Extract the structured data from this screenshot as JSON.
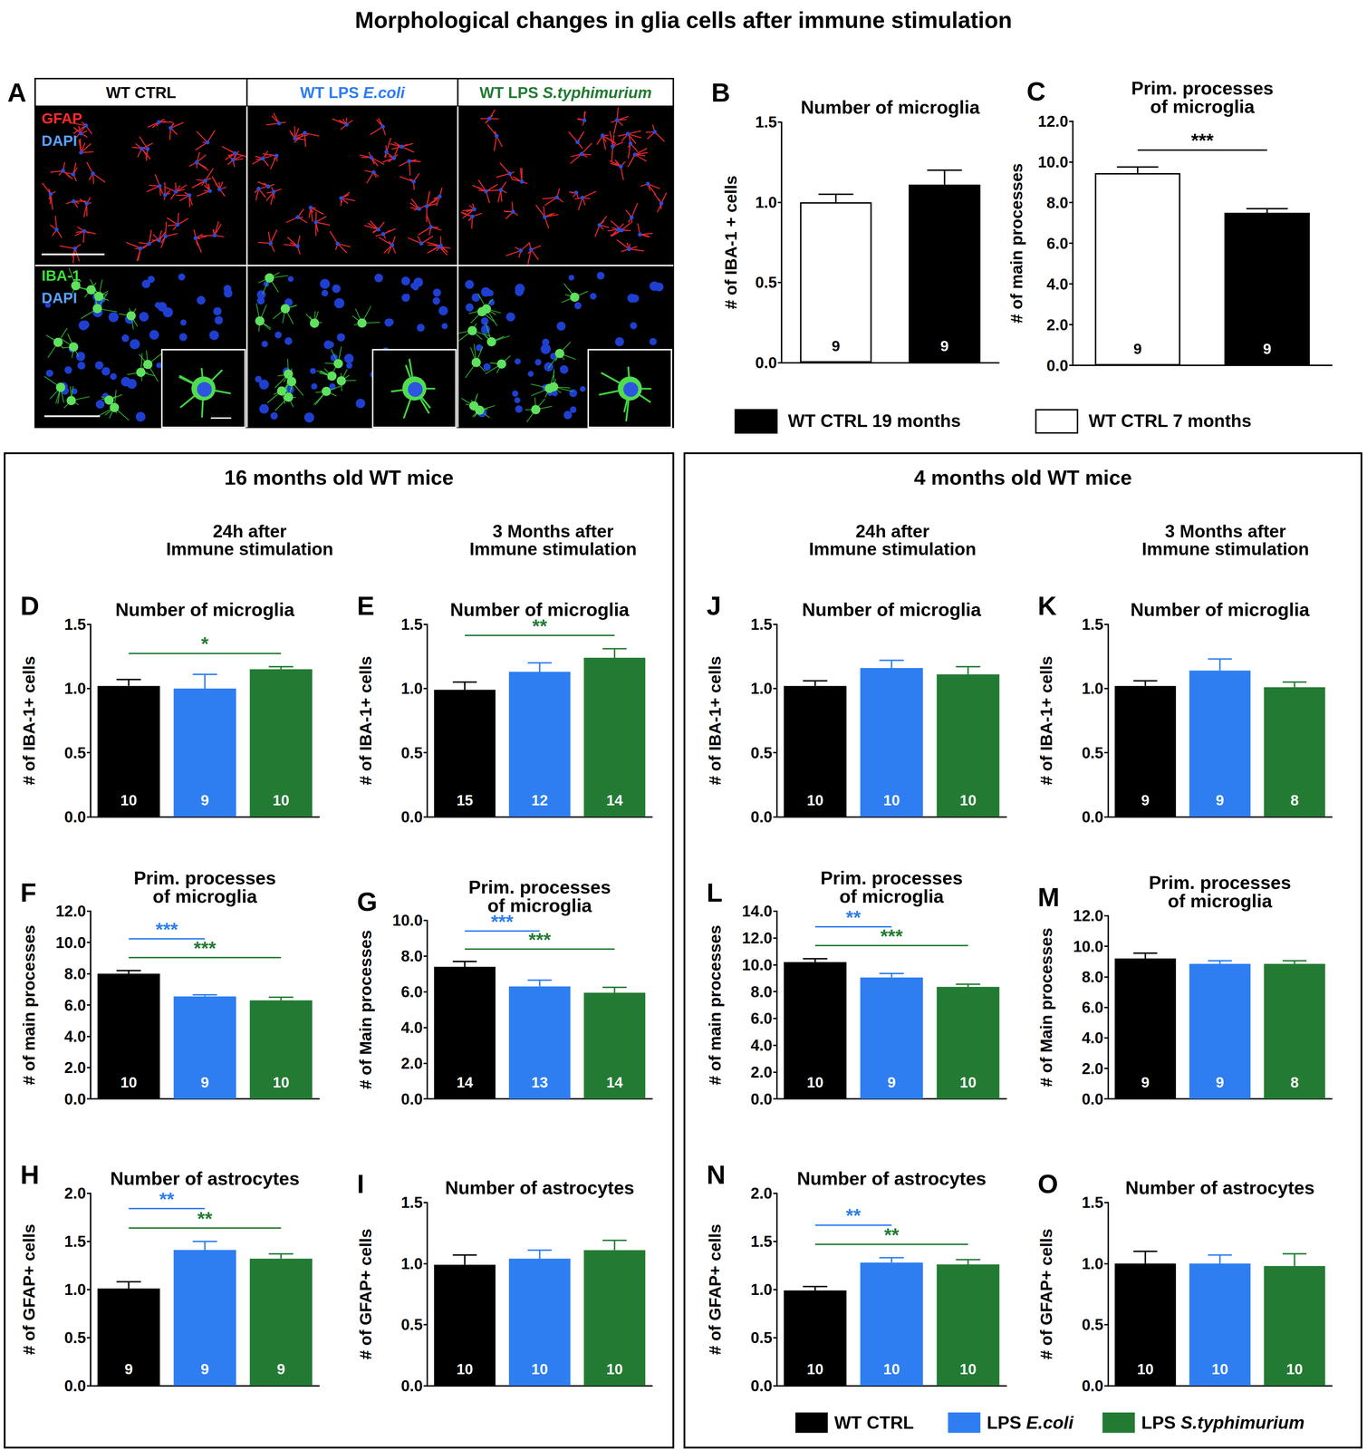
{
  "title": "Morphological changes in glia cells after immune stimulation",
  "panel_a": {
    "panel": "A",
    "columns": [
      {
        "text": "WT CTRL",
        "color": "#000000"
      },
      {
        "text": "WT LPS E.coli",
        "color": "#2e7ef2"
      },
      {
        "text": "WT LPS S.typhimurium",
        "color": "#237b33"
      }
    ],
    "rows": [
      [
        {
          "text": "GFAP",
          "color": "#ff2a2a"
        },
        {
          "text": "DAPI",
          "color": "#5aa0ff"
        }
      ],
      [
        {
          "text": "IBA-1",
          "color": "#3ddc3d"
        },
        {
          "text": "DAPI",
          "color": "#5aa0ff"
        }
      ]
    ]
  },
  "legend_top": [
    {
      "name": "WT CTRL 19 months",
      "color": "#000000"
    },
    {
      "name": "WT CTRL 7 months",
      "color": "#ffffff"
    }
  ],
  "legend_bottom": [
    {
      "name": "WT CTRL",
      "color": "#000000"
    },
    {
      "name": "LPS E.coli",
      "color": "#2e7ef2"
    },
    {
      "name": "LPS S.typhimurium",
      "color": "#237b33"
    }
  ],
  "sections": [
    {
      "title": "16 months old WT mice",
      "columns": [
        "24h after\nImmune stimulation",
        "3 Months after\nImmune stimulation"
      ]
    },
    {
      "title": "4 months old WT mice",
      "columns": [
        "24h after\nImmune stimulation",
        "3 Months after\nImmune stimulation"
      ]
    }
  ],
  "chart_data": [
    {
      "type": "bar",
      "panel": "B",
      "title": "Number of microglia",
      "ylabel": "# of IBA-1 + cells",
      "categories": [
        "WT CTRL 7 months",
        "WT CTRL 19 months"
      ],
      "colors": [
        "#ffffff",
        "#000000"
      ],
      "values": [
        1.0,
        1.11
      ],
      "errors": [
        0.05,
        0.09
      ],
      "n": [
        9,
        9
      ],
      "ylim": [
        0,
        1.5
      ],
      "yticks": [
        {
          "value": 0,
          "label": "0.0"
        },
        {
          "value": 0.5,
          "label": "0.5"
        },
        {
          "value": 1,
          "label": "1.0"
        },
        {
          "value": 1.5,
          "label": "1.5"
        }
      ],
      "grid": false,
      "tick_labels": "y",
      "annotations": []
    },
    {
      "type": "bar",
      "panel": "C",
      "title": "Prim. processes\nof microglia",
      "ylabel": "# of main processes",
      "categories": [
        "WT CTRL 7 months",
        "WT CTRL 19 months"
      ],
      "colors": [
        "#ffffff",
        "#000000"
      ],
      "values": [
        9.45,
        7.5
      ],
      "errors": [
        0.3,
        0.2
      ],
      "n": [
        9,
        9
      ],
      "ylim": [
        0,
        12
      ],
      "yticks": [
        {
          "value": 0,
          "label": "0.0"
        },
        {
          "value": 2,
          "label": "2.0"
        },
        {
          "value": 4,
          "label": "4.0"
        },
        {
          "value": 6,
          "label": "6.0"
        },
        {
          "value": 8,
          "label": "8.0"
        },
        {
          "value": 10,
          "label": "10.0"
        },
        {
          "value": 12,
          "label": "12.0"
        }
      ],
      "grid": false,
      "tick_labels": "y",
      "annotations": [
        {
          "from": "WT CTRL 7 months",
          "to": "WT CTRL 19 months",
          "label": "***",
          "color": "#000000"
        }
      ]
    },
    {
      "type": "bar",
      "panel": "D",
      "title": "Number of microglia",
      "ylabel": "# of IBA-1+ cells",
      "categories": [
        "WT CTRL",
        "LPS E.coli",
        "LPS S.typhimurium"
      ],
      "colors": [
        "#000000",
        "#2e7ef2",
        "#237b33"
      ],
      "values": [
        1.02,
        1.0,
        1.15
      ],
      "errors": [
        0.05,
        0.11,
        0.02
      ],
      "n": [
        10,
        9,
        10
      ],
      "ylim": [
        0,
        1.5
      ],
      "yticks": [
        {
          "value": 0,
          "label": "0.0"
        },
        {
          "value": 0.5,
          "label": "0.5"
        },
        {
          "value": 1,
          "label": "1.0"
        },
        {
          "value": 1.5,
          "label": "1.5"
        }
      ],
      "grid": false,
      "tick_labels": "y",
      "annotations": [
        {
          "from": "WT CTRL",
          "to": "LPS S.typhimurium",
          "label": "*",
          "color": "#237b33"
        }
      ]
    },
    {
      "type": "bar",
      "panel": "E",
      "title": "Number of microglia",
      "ylabel": "# of IBA-1+ cells",
      "categories": [
        "WT CTRL",
        "LPS E.coli",
        "LPS S.typhimurium"
      ],
      "colors": [
        "#000000",
        "#2e7ef2",
        "#237b33"
      ],
      "values": [
        0.99,
        1.13,
        1.24
      ],
      "errors": [
        0.06,
        0.07,
        0.07
      ],
      "n": [
        15,
        12,
        14
      ],
      "ylim": [
        0,
        1.5
      ],
      "yticks": [
        {
          "value": 0,
          "label": "0.0"
        },
        {
          "value": 0.5,
          "label": "0.5"
        },
        {
          "value": 1,
          "label": "1.0"
        },
        {
          "value": 1.5,
          "label": "1.5"
        }
      ],
      "grid": false,
      "tick_labels": "y",
      "annotations": [
        {
          "from": "WT CTRL",
          "to": "LPS S.typhimurium",
          "label": "**",
          "color": "#237b33"
        }
      ]
    },
    {
      "type": "bar",
      "panel": "F",
      "title": "Prim. processes\nof microglia",
      "ylabel": "# of main processes",
      "categories": [
        "WT CTRL",
        "LPS E.coli",
        "LPS S.typhimurium"
      ],
      "colors": [
        "#000000",
        "#2e7ef2",
        "#237b33"
      ],
      "values": [
        8.0,
        6.55,
        6.3
      ],
      "errors": [
        0.2,
        0.1,
        0.2
      ],
      "n": [
        10,
        9,
        10
      ],
      "ylim": [
        0,
        12
      ],
      "yticks": [
        {
          "value": 0,
          "label": "0.0"
        },
        {
          "value": 2,
          "label": "2.0"
        },
        {
          "value": 4,
          "label": "4.0"
        },
        {
          "value": 6,
          "label": "6.0"
        },
        {
          "value": 8,
          "label": "8.0"
        },
        {
          "value": 10,
          "label": "10.0"
        },
        {
          "value": 12,
          "label": "12.0"
        }
      ],
      "grid": false,
      "tick_labels": "y",
      "annotations": [
        {
          "from": "WT CTRL",
          "to": "LPS E.coli",
          "label": "***",
          "color": "#2e7ef2"
        },
        {
          "from": "WT CTRL",
          "to": "LPS S.typhimurium",
          "label": "***",
          "color": "#237b33"
        }
      ]
    },
    {
      "type": "bar",
      "panel": "G",
      "title": "Prim. processes\nof microglia",
      "ylabel": "# of Main processes",
      "categories": [
        "WT CTRL",
        "LPS E.coli",
        "LPS S.typhimurium"
      ],
      "colors": [
        "#000000",
        "#2e7ef2",
        "#237b33"
      ],
      "values": [
        7.4,
        6.3,
        5.95
      ],
      "errors": [
        0.3,
        0.35,
        0.3
      ],
      "n": [
        14,
        13,
        14
      ],
      "ylim": [
        0,
        10
      ],
      "yticks": [
        {
          "value": 0,
          "label": "0.0"
        },
        {
          "value": 2,
          "label": "2.0"
        },
        {
          "value": 4,
          "label": "4.0"
        },
        {
          "value": 6,
          "label": "6.0"
        },
        {
          "value": 8,
          "label": "8.0"
        },
        {
          "value": 10,
          "label": "10.0"
        }
      ],
      "grid": false,
      "tick_labels": "y",
      "annotations": [
        {
          "from": "WT CTRL",
          "to": "LPS E.coli",
          "label": "***",
          "color": "#2e7ef2"
        },
        {
          "from": "WT CTRL",
          "to": "LPS S.typhimurium",
          "label": "***",
          "color": "#237b33"
        }
      ]
    },
    {
      "type": "bar",
      "panel": "H",
      "title": "Number of astrocytes",
      "ylabel": "# of GFAP+ cells",
      "categories": [
        "WT CTRL",
        "LPS E.coli",
        "LPS S.typhimurium"
      ],
      "colors": [
        "#000000",
        "#2e7ef2",
        "#237b33"
      ],
      "values": [
        1.01,
        1.41,
        1.32
      ],
      "errors": [
        0.07,
        0.09,
        0.05
      ],
      "n": [
        9,
        9,
        9
      ],
      "ylim": [
        0,
        2
      ],
      "yticks": [
        {
          "value": 0,
          "label": "0.0"
        },
        {
          "value": 0.5,
          "label": "0.5"
        },
        {
          "value": 1,
          "label": "1.0"
        },
        {
          "value": 1.5,
          "label": "1.5"
        },
        {
          "value": 2,
          "label": "2.0"
        }
      ],
      "grid": false,
      "tick_labels": "y",
      "annotations": [
        {
          "from": "WT CTRL",
          "to": "LPS E.coli",
          "label": "**",
          "color": "#2e7ef2"
        },
        {
          "from": "WT CTRL",
          "to": "LPS S.typhimurium",
          "label": "**",
          "color": "#237b33"
        }
      ]
    },
    {
      "type": "bar",
      "panel": "I",
      "title": "Number of astrocytes",
      "ylabel": "# of GFAP+ cells",
      "categories": [
        "WT CTRL",
        "LPS E.coli",
        "LPS S.typhimurium"
      ],
      "colors": [
        "#000000",
        "#2e7ef2",
        "#237b33"
      ],
      "values": [
        0.99,
        1.04,
        1.11
      ],
      "errors": [
        0.08,
        0.07,
        0.08
      ],
      "n": [
        10,
        10,
        10
      ],
      "ylim": [
        0,
        1.5
      ],
      "yticks": [
        {
          "value": 0,
          "label": "0.0"
        },
        {
          "value": 0.5,
          "label": "0.5"
        },
        {
          "value": 1,
          "label": "1.0"
        },
        {
          "value": 1.5,
          "label": "1.5"
        }
      ],
      "grid": false,
      "tick_labels": "y",
      "annotations": []
    },
    {
      "type": "bar",
      "panel": "J",
      "title": "Number of microglia",
      "ylabel": "# of IBA-1+ cells",
      "categories": [
        "WT CTRL",
        "LPS E.coli",
        "LPS S.typhimurium"
      ],
      "colors": [
        "#000000",
        "#2e7ef2",
        "#237b33"
      ],
      "values": [
        1.02,
        1.16,
        1.11
      ],
      "errors": [
        0.04,
        0.06,
        0.06
      ],
      "n": [
        10,
        10,
        10
      ],
      "ylim": [
        0,
        1.5
      ],
      "yticks": [
        {
          "value": 0,
          "label": "0.0"
        },
        {
          "value": 0.5,
          "label": "0.5"
        },
        {
          "value": 1,
          "label": "1.0"
        },
        {
          "value": 1.5,
          "label": "1.5"
        }
      ],
      "grid": false,
      "tick_labels": "y",
      "annotations": []
    },
    {
      "type": "bar",
      "panel": "K",
      "title": "Number of microglia",
      "ylabel": "# of IBA-1+ cells",
      "categories": [
        "WT CTRL",
        "LPS E.coli",
        "LPS S.typhimurium"
      ],
      "colors": [
        "#000000",
        "#2e7ef2",
        "#237b33"
      ],
      "values": [
        1.02,
        1.14,
        1.01
      ],
      "errors": [
        0.04,
        0.09,
        0.04
      ],
      "n": [
        9,
        9,
        8
      ],
      "ylim": [
        0,
        1.5
      ],
      "yticks": [
        {
          "value": 0,
          "label": "0.0"
        },
        {
          "value": 0.5,
          "label": "0.5"
        },
        {
          "value": 1,
          "label": "1.0"
        },
        {
          "value": 1.5,
          "label": "1.5"
        }
      ],
      "grid": false,
      "tick_labels": "y",
      "annotations": []
    },
    {
      "type": "bar",
      "panel": "L",
      "title": "Prim. processes\nof microglia",
      "ylabel": "# of main processes",
      "categories": [
        "WT CTRL",
        "LPS E.coli",
        "LPS S.typhimurium"
      ],
      "colors": [
        "#000000",
        "#2e7ef2",
        "#237b33"
      ],
      "values": [
        10.2,
        9.05,
        8.35
      ],
      "errors": [
        0.25,
        0.3,
        0.2
      ],
      "n": [
        10,
        9,
        10
      ],
      "ylim": [
        0,
        14
      ],
      "yticks": [
        {
          "value": 0,
          "label": "0.0"
        },
        {
          "value": 2,
          "label": "2.0"
        },
        {
          "value": 4,
          "label": "4.0"
        },
        {
          "value": 6,
          "label": "6.0"
        },
        {
          "value": 8,
          "label": "8.0"
        },
        {
          "value": 10,
          "label": "10.0"
        },
        {
          "value": 12,
          "label": "12.0"
        },
        {
          "value": 14,
          "label": "14.0"
        }
      ],
      "grid": false,
      "tick_labels": "y",
      "annotations": [
        {
          "from": "WT CTRL",
          "to": "LPS E.coli",
          "label": "**",
          "color": "#2e7ef2"
        },
        {
          "from": "WT CTRL",
          "to": "LPS S.typhimurium",
          "label": "***",
          "color": "#237b33"
        }
      ]
    },
    {
      "type": "bar",
      "panel": "M",
      "title": "Prim. processes\nof microglia",
      "ylabel": "# of Main processes",
      "categories": [
        "WT CTRL",
        "LPS E.coli",
        "LPS S.typhimurium"
      ],
      "colors": [
        "#000000",
        "#2e7ef2",
        "#237b33"
      ],
      "values": [
        9.2,
        8.85,
        8.85
      ],
      "errors": [
        0.35,
        0.2,
        0.2
      ],
      "n": [
        9,
        9,
        8
      ],
      "ylim": [
        0,
        12
      ],
      "yticks": [
        {
          "value": 0,
          "label": "0.0"
        },
        {
          "value": 2,
          "label": "2.0"
        },
        {
          "value": 4,
          "label": "4.0"
        },
        {
          "value": 6,
          "label": "6.0"
        },
        {
          "value": 8,
          "label": "8.0"
        },
        {
          "value": 10,
          "label": "10.0"
        },
        {
          "value": 12,
          "label": "12.0"
        }
      ],
      "grid": false,
      "tick_labels": "y",
      "annotations": []
    },
    {
      "type": "bar",
      "panel": "N",
      "title": "Number of astrocytes",
      "ylabel": "# of GFAP+ cells",
      "categories": [
        "WT CTRL",
        "LPS E.coli",
        "LPS S.typhimurium"
      ],
      "colors": [
        "#000000",
        "#2e7ef2",
        "#237b33"
      ],
      "values": [
        0.99,
        1.28,
        1.26
      ],
      "errors": [
        0.04,
        0.05,
        0.05
      ],
      "n": [
        10,
        10,
        10
      ],
      "ylim": [
        0,
        2
      ],
      "yticks": [
        {
          "value": 0,
          "label": "0.0"
        },
        {
          "value": 0.5,
          "label": "0.5"
        },
        {
          "value": 1,
          "label": "1.0"
        },
        {
          "value": 1.5,
          "label": "1.5"
        },
        {
          "value": 2,
          "label": "2.0"
        }
      ],
      "grid": false,
      "tick_labels": "y",
      "annotations": [
        {
          "from": "WT CTRL",
          "to": "LPS E.coli",
          "label": "**",
          "color": "#2e7ef2"
        },
        {
          "from": "WT CTRL",
          "to": "LPS S.typhimurium",
          "label": "**",
          "color": "#237b33"
        }
      ]
    },
    {
      "type": "bar",
      "panel": "O",
      "title": "Number of astrocytes",
      "ylabel": "# of GFAP+ cells",
      "categories": [
        "WT CTRL",
        "LPS E.coli",
        "LPS S.typhimurium"
      ],
      "colors": [
        "#000000",
        "#2e7ef2",
        "#237b33"
      ],
      "values": [
        1.0,
        1.0,
        0.98
      ],
      "errors": [
        0.1,
        0.07,
        0.1
      ],
      "n": [
        10,
        10,
        10
      ],
      "ylim": [
        0,
        1.5
      ],
      "yticks": [
        {
          "value": 0,
          "label": "0.0"
        },
        {
          "value": 0.5,
          "label": "0.5"
        },
        {
          "value": 1,
          "label": "1.0"
        },
        {
          "value": 1.5,
          "label": "1.5"
        }
      ],
      "grid": false,
      "tick_labels": "y",
      "annotations": []
    }
  ]
}
